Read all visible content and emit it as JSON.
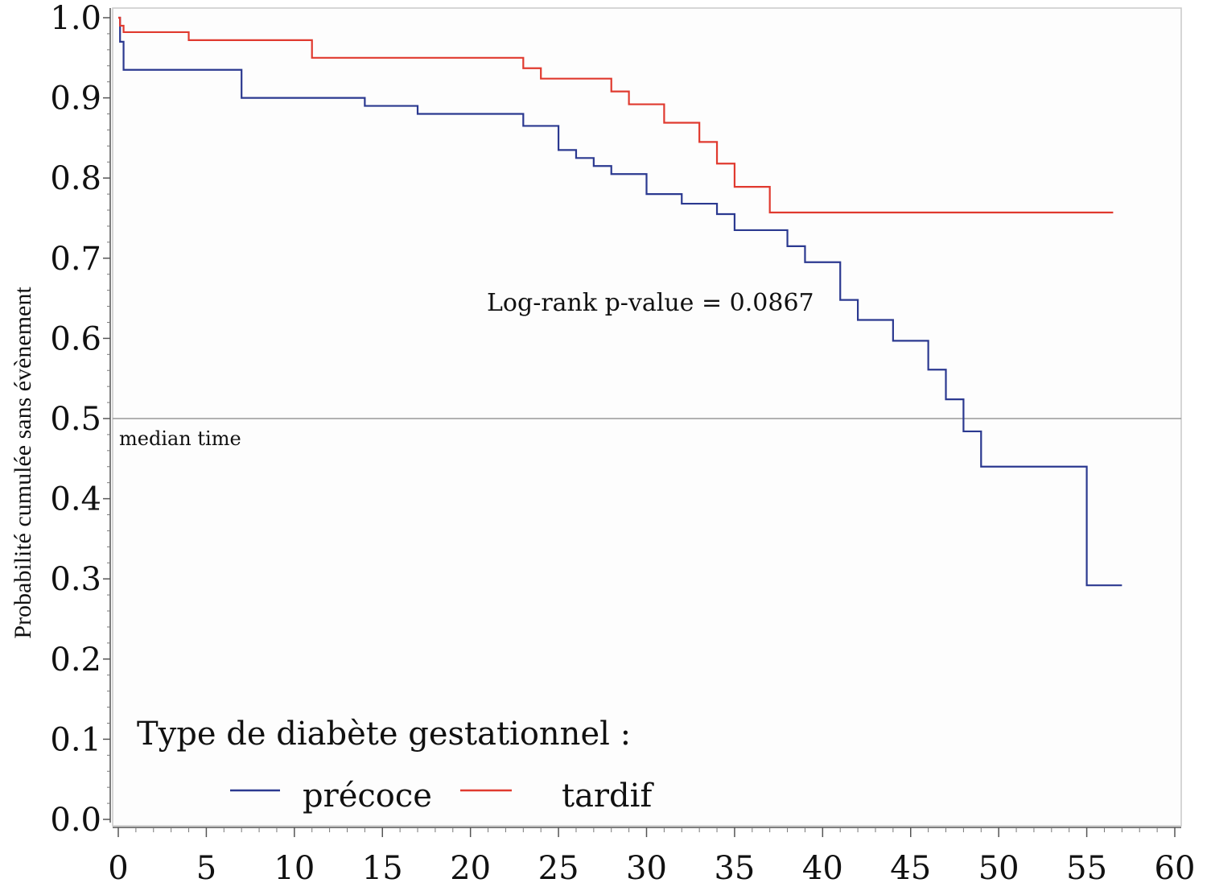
{
  "chart_data": {
    "type": "line",
    "ylabel": "Probabilité cumulée sans évènement",
    "xlabel": "",
    "xlim": [
      0,
      60
    ],
    "ylim": [
      0,
      1
    ],
    "x_ticks": [
      "0",
      "5",
      "10",
      "15",
      "20",
      "25",
      "30",
      "35",
      "40",
      "45",
      "50",
      "55",
      "60"
    ],
    "y_ticks": [
      "0.0",
      "0.1",
      "0.2",
      "0.3",
      "0.4",
      "0.5",
      "0.6",
      "0.7",
      "0.8",
      "0.9",
      "1.0"
    ],
    "reference_line": {
      "y": 0.5,
      "label": "median time",
      "color": "#9a9a9a"
    },
    "annotation": "Log-rank p-value = 0.0867",
    "legend": {
      "title": "Type de diabète gestationnel :",
      "placement": "bottom-left"
    },
    "series": [
      {
        "name": "précoce",
        "color": "#2b3990",
        "x": [
          0,
          0.1,
          0.3,
          7,
          14,
          17,
          23,
          25,
          26,
          27,
          28,
          30,
          32,
          34,
          35,
          38,
          39,
          41,
          42,
          44,
          46,
          47,
          48,
          49,
          55,
          57
        ],
        "y": [
          1.0,
          0.97,
          0.935,
          0.9,
          0.89,
          0.88,
          0.865,
          0.835,
          0.825,
          0.815,
          0.805,
          0.78,
          0.768,
          0.755,
          0.735,
          0.715,
          0.695,
          0.648,
          0.623,
          0.597,
          0.561,
          0.524,
          0.484,
          0.44,
          0.292,
          0.292
        ]
      },
      {
        "name": "tardif",
        "color": "#e03a2f",
        "x": [
          0,
          0.1,
          0.3,
          4,
          11,
          23,
          24,
          28,
          29,
          31,
          33,
          34,
          35,
          37,
          56.5
        ],
        "y": [
          1.0,
          0.99,
          0.982,
          0.972,
          0.95,
          0.937,
          0.924,
          0.908,
          0.892,
          0.869,
          0.845,
          0.818,
          0.789,
          0.757,
          0.757
        ]
      }
    ]
  }
}
